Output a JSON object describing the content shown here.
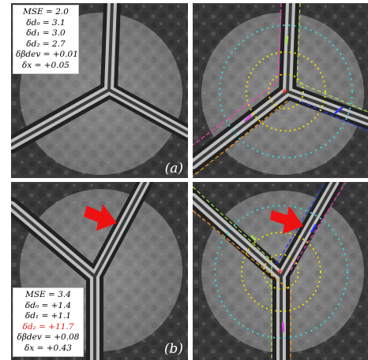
{
  "figure": {
    "panel_a": {
      "label": "(a)",
      "stats": [
        "MSE = 2.0",
        "δd₀ = 3.1",
        "δd₁ = 3.0",
        "δd₂ = 2.7",
        "δβdev = +0.01",
        "δx = +0.05"
      ]
    },
    "panel_b": {
      "label": "(b)",
      "stats": [
        "MSE = 3.4",
        "δd₀ = +1.4",
        "δd₁ = +1.1",
        "δd₂ = +11.7",
        "δβdev = +0.08",
        "δx = +0.43"
      ],
      "highlight_color": "#e0201a"
    }
  },
  "colors": {
    "arrow": "#ee1111",
    "center_marker": "#ff2222",
    "inner_circle": "#e6d900",
    "outer_circle": "#33d6d6",
    "edge_green": "#a8e34a",
    "edge_blue": "#2a3bff",
    "edge_pink": "#ff3ab5",
    "edge_orange": "#ff9a1a",
    "dash_magenta": "#e83cf0"
  }
}
